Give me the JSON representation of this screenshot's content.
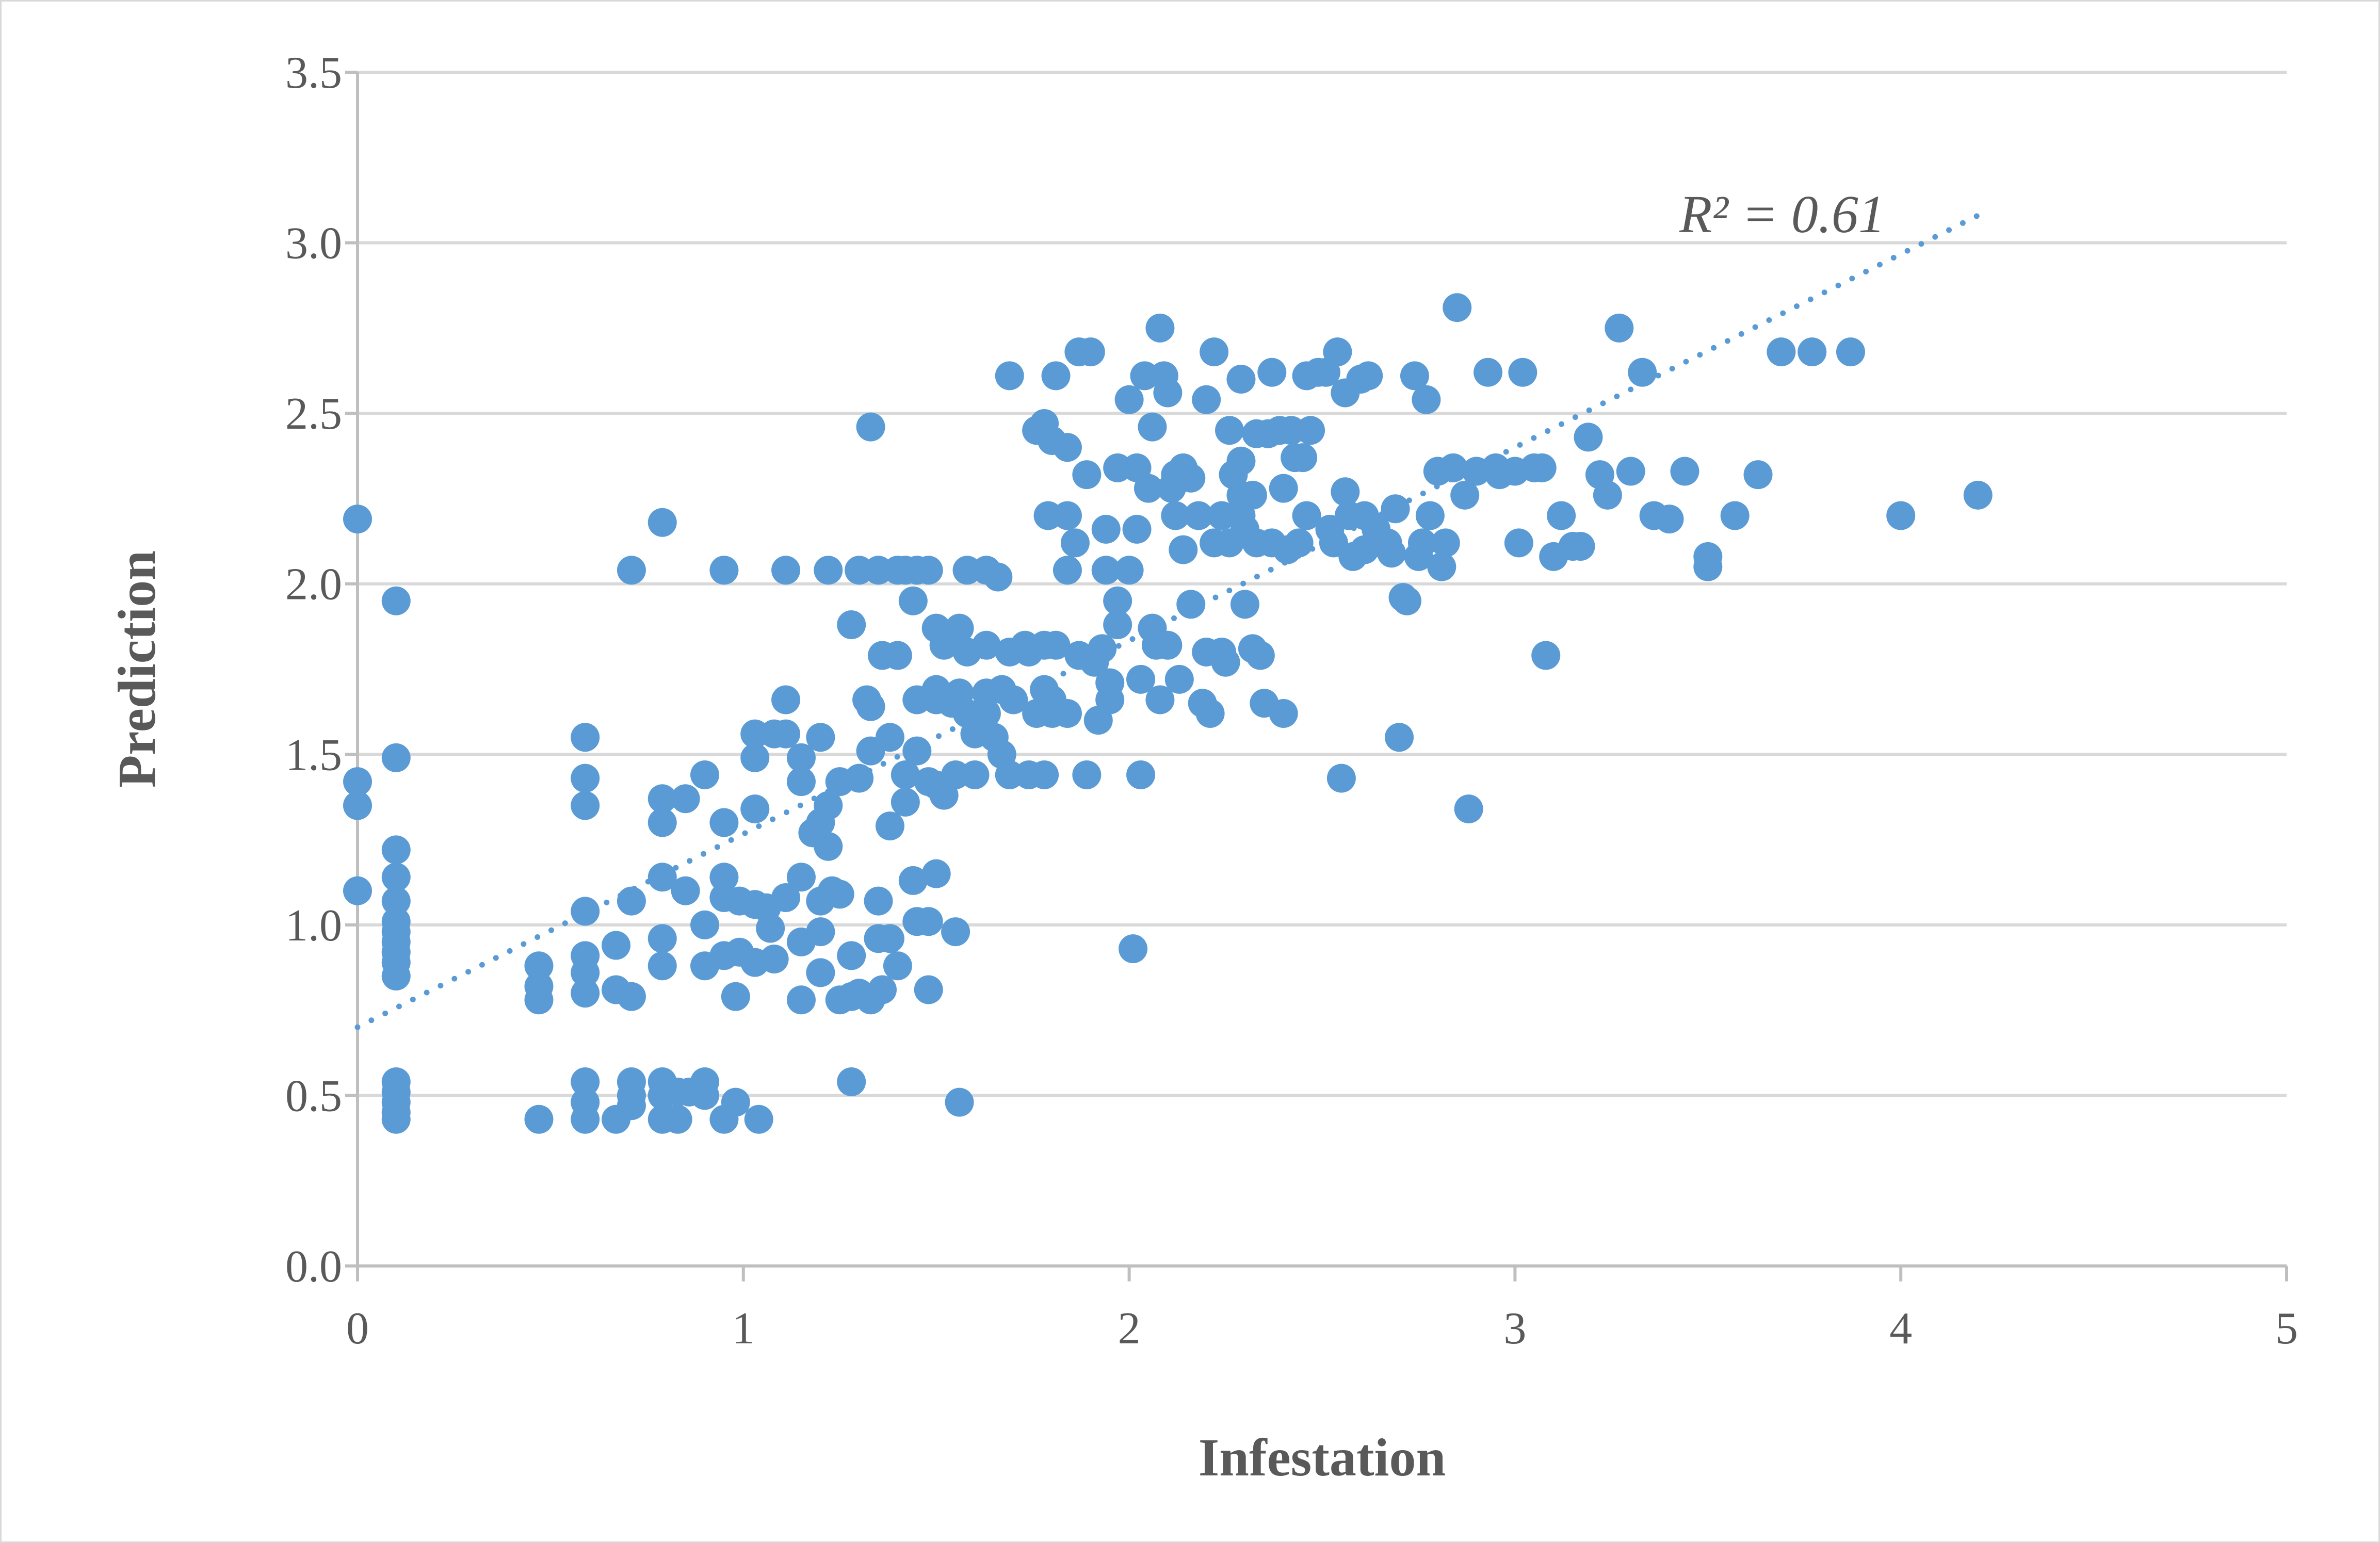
{
  "chart_data": {
    "type": "scatter",
    "xlabel": "Infestation",
    "ylabel": "Prediction",
    "xlim": [
      0,
      5
    ],
    "ylim": [
      0,
      3.5
    ],
    "xticks": [
      "0",
      "1",
      "2",
      "3",
      "4",
      "5"
    ],
    "yticks": [
      "0.0",
      "0.5",
      "1.0",
      "1.5",
      "2.0",
      "2.5",
      "3.0",
      "3.5"
    ],
    "grid": "horizontal",
    "legend": "none",
    "marker_color": "#5b9bd5",
    "trendline": {
      "style": "dotted",
      "color": "#5b9bd5",
      "label": "R² = 0.61",
      "start": [
        0,
        0.7
      ],
      "end": [
        4.2,
        3.08
      ]
    },
    "points": [
      [
        0,
        2.19
      ],
      [
        0,
        1.42
      ],
      [
        0,
        1.35
      ],
      [
        0,
        1.1
      ],
      [
        0.1,
        1.95
      ],
      [
        0.1,
        1.49
      ],
      [
        0.1,
        1.22
      ],
      [
        0.1,
        1.14
      ],
      [
        0.1,
        1.07
      ],
      [
        0.1,
        1.01
      ],
      [
        0.1,
        0.98
      ],
      [
        0.1,
        0.95
      ],
      [
        0.1,
        0.92
      ],
      [
        0.1,
        0.89
      ],
      [
        0.1,
        0.85
      ],
      [
        0.1,
        0.54
      ],
      [
        0.1,
        0.51
      ],
      [
        0.1,
        0.48
      ],
      [
        0.1,
        0.45
      ],
      [
        0.1,
        0.43
      ],
      [
        0.47,
        0.88
      ],
      [
        0.47,
        0.82
      ],
      [
        0.47,
        0.78
      ],
      [
        0.47,
        0.43
      ],
      [
        0.59,
        1.55
      ],
      [
        0.59,
        1.43
      ],
      [
        0.59,
        1.35
      ],
      [
        0.59,
        1.04
      ],
      [
        0.59,
        0.91
      ],
      [
        0.59,
        0.86
      ],
      [
        0.59,
        0.8
      ],
      [
        0.59,
        0.54
      ],
      [
        0.59,
        0.48
      ],
      [
        0.59,
        0.43
      ],
      [
        0.67,
        0.94
      ],
      [
        0.67,
        0.81
      ],
      [
        0.67,
        0.43
      ],
      [
        0.71,
        2.04
      ],
      [
        0.71,
        1.07
      ],
      [
        0.71,
        0.79
      ],
      [
        0.71,
        0.54
      ],
      [
        0.71,
        0.5
      ],
      [
        0.71,
        0.47
      ],
      [
        0.79,
        2.18
      ],
      [
        0.79,
        1.37
      ],
      [
        0.79,
        1.3
      ],
      [
        0.79,
        1.14
      ],
      [
        0.79,
        0.96
      ],
      [
        0.79,
        0.88
      ],
      [
        0.79,
        0.54
      ],
      [
        0.79,
        0.5
      ],
      [
        0.79,
        0.43
      ],
      [
        0.83,
        0.51
      ],
      [
        0.83,
        0.43
      ],
      [
        0.85,
        1.37
      ],
      [
        0.85,
        1.1
      ],
      [
        0.86,
        0.51
      ],
      [
        0.9,
        1.44
      ],
      [
        0.9,
        1.0
      ],
      [
        0.9,
        0.88
      ],
      [
        0.9,
        0.54
      ],
      [
        0.9,
        0.5
      ],
      [
        0.95,
        2.04
      ],
      [
        0.95,
        1.3
      ],
      [
        0.95,
        1.14
      ],
      [
        0.95,
        1.08
      ],
      [
        0.95,
        0.91
      ],
      [
        0.95,
        0.43
      ],
      [
        0.98,
        0.79
      ],
      [
        0.98,
        0.48
      ],
      [
        0.99,
        1.07
      ],
      [
        0.99,
        0.92
      ],
      [
        1.03,
        1.56
      ],
      [
        1.03,
        1.49
      ],
      [
        1.03,
        1.34
      ],
      [
        1.03,
        1.06
      ],
      [
        1.03,
        0.89
      ],
      [
        1.04,
        0.43
      ],
      [
        1.06,
        1.05
      ],
      [
        1.07,
        0.99
      ],
      [
        1.08,
        1.56
      ],
      [
        1.08,
        0.9
      ],
      [
        1.11,
        2.04
      ],
      [
        1.11,
        1.66
      ],
      [
        1.11,
        1.56
      ],
      [
        1.11,
        1.08
      ],
      [
        1.15,
        1.49
      ],
      [
        1.15,
        1.42
      ],
      [
        1.15,
        1.14
      ],
      [
        1.15,
        0.95
      ],
      [
        1.15,
        0.78
      ],
      [
        1.18,
        1.27
      ],
      [
        1.2,
        1.55
      ],
      [
        1.2,
        1.3
      ],
      [
        1.2,
        1.07
      ],
      [
        1.2,
        0.98
      ],
      [
        1.2,
        0.86
      ],
      [
        1.22,
        2.04
      ],
      [
        1.22,
        1.35
      ],
      [
        1.22,
        1.23
      ],
      [
        1.23,
        1.1
      ],
      [
        1.25,
        1.42
      ],
      [
        1.25,
        1.09
      ],
      [
        1.25,
        0.78
      ],
      [
        1.28,
        1.88
      ],
      [
        1.28,
        0.91
      ],
      [
        1.28,
        0.79
      ],
      [
        1.28,
        0.54
      ],
      [
        1.3,
        2.04
      ],
      [
        1.3,
        1.43
      ],
      [
        1.3,
        0.8
      ],
      [
        1.32,
        1.66
      ],
      [
        1.33,
        2.46
      ],
      [
        1.33,
        1.64
      ],
      [
        1.33,
        1.51
      ],
      [
        1.33,
        0.78
      ],
      [
        1.35,
        2.04
      ],
      [
        1.35,
        1.07
      ],
      [
        1.35,
        0.96
      ],
      [
        1.36,
        1.79
      ],
      [
        1.36,
        0.81
      ],
      [
        1.38,
        1.55
      ],
      [
        1.38,
        1.29
      ],
      [
        1.38,
        0.96
      ],
      [
        1.4,
        2.04
      ],
      [
        1.4,
        1.79
      ],
      [
        1.4,
        0.88
      ],
      [
        1.42,
        2.04
      ],
      [
        1.42,
        1.44
      ],
      [
        1.42,
        1.36
      ],
      [
        1.44,
        1.95
      ],
      [
        1.44,
        1.13
      ],
      [
        1.45,
        2.04
      ],
      [
        1.45,
        1.66
      ],
      [
        1.45,
        1.51
      ],
      [
        1.45,
        1.01
      ],
      [
        1.48,
        2.04
      ],
      [
        1.48,
        1.42
      ],
      [
        1.48,
        1.01
      ],
      [
        1.48,
        0.81
      ],
      [
        1.5,
        1.87
      ],
      [
        1.5,
        1.69
      ],
      [
        1.5,
        1.66
      ],
      [
        1.5,
        1.41
      ],
      [
        1.5,
        1.15
      ],
      [
        1.52,
        1.82
      ],
      [
        1.52,
        1.38
      ],
      [
        1.54,
        1.65
      ],
      [
        1.55,
        1.44
      ],
      [
        1.55,
        0.98
      ],
      [
        1.56,
        1.87
      ],
      [
        1.56,
        1.68
      ],
      [
        1.56,
        0.48
      ],
      [
        1.58,
        2.04
      ],
      [
        1.58,
        1.8
      ],
      [
        1.58,
        1.62
      ],
      [
        1.6,
        1.56
      ],
      [
        1.6,
        1.44
      ],
      [
        1.63,
        2.04
      ],
      [
        1.63,
        1.82
      ],
      [
        1.63,
        1.68
      ],
      [
        1.63,
        1.62
      ],
      [
        1.65,
        1.55
      ],
      [
        1.66,
        2.02
      ],
      [
        1.67,
        1.69
      ],
      [
        1.67,
        1.5
      ],
      [
        1.69,
        2.61
      ],
      [
        1.69,
        1.8
      ],
      [
        1.69,
        1.44
      ],
      [
        1.7,
        1.66
      ],
      [
        1.73,
        1.82
      ],
      [
        1.74,
        1.8
      ],
      [
        1.74,
        1.44
      ],
      [
        1.76,
        2.45
      ],
      [
        1.76,
        1.62
      ],
      [
        1.78,
        2.47
      ],
      [
        1.78,
        1.82
      ],
      [
        1.78,
        1.69
      ],
      [
        1.78,
        1.44
      ],
      [
        1.79,
        2.2
      ],
      [
        1.8,
        2.42
      ],
      [
        1.8,
        1.66
      ],
      [
        1.8,
        1.62
      ],
      [
        1.81,
        2.61
      ],
      [
        1.81,
        1.82
      ],
      [
        1.84,
        2.4
      ],
      [
        1.84,
        2.2
      ],
      [
        1.84,
        2.04
      ],
      [
        1.84,
        1.62
      ],
      [
        1.86,
        2.12
      ],
      [
        1.87,
        2.68
      ],
      [
        1.87,
        1.79
      ],
      [
        1.89,
        2.32
      ],
      [
        1.89,
        1.44
      ],
      [
        1.9,
        2.68
      ],
      [
        1.91,
        1.77
      ],
      [
        1.92,
        1.6
      ],
      [
        1.93,
        1.81
      ],
      [
        1.94,
        2.16
      ],
      [
        1.94,
        2.04
      ],
      [
        1.95,
        1.71
      ],
      [
        1.95,
        1.66
      ],
      [
        1.97,
        2.34
      ],
      [
        1.97,
        1.95
      ],
      [
        1.97,
        1.88
      ],
      [
        2.0,
        2.54
      ],
      [
        2.0,
        2.04
      ],
      [
        2.01,
        0.93
      ],
      [
        2.02,
        2.34
      ],
      [
        2.02,
        2.16
      ],
      [
        2.03,
        1.72
      ],
      [
        2.03,
        1.44
      ],
      [
        2.04,
        2.61
      ],
      [
        2.05,
        2.28
      ],
      [
        2.06,
        2.46
      ],
      [
        2.06,
        1.87
      ],
      [
        2.07,
        1.82
      ],
      [
        2.08,
        2.75
      ],
      [
        2.08,
        1.66
      ],
      [
        2.09,
        2.61
      ],
      [
        2.1,
        2.56
      ],
      [
        2.1,
        1.82
      ],
      [
        2.11,
        2.28
      ],
      [
        2.12,
        2.32
      ],
      [
        2.12,
        2.2
      ],
      [
        2.13,
        1.72
      ],
      [
        2.14,
        2.1
      ],
      [
        2.14,
        2.34
      ],
      [
        2.16,
        2.31
      ],
      [
        2.16,
        1.94
      ],
      [
        2.18,
        2.2
      ],
      [
        2.19,
        1.65
      ],
      [
        2.2,
        2.54
      ],
      [
        2.2,
        1.8
      ],
      [
        2.21,
        1.62
      ],
      [
        2.22,
        2.68
      ],
      [
        2.22,
        2.12
      ],
      [
        2.24,
        2.2
      ],
      [
        2.24,
        1.8
      ],
      [
        2.25,
        1.77
      ],
      [
        2.26,
        2.45
      ],
      [
        2.26,
        2.12
      ],
      [
        2.27,
        2.32
      ],
      [
        2.29,
        2.6
      ],
      [
        2.29,
        2.36
      ],
      [
        2.29,
        2.26
      ],
      [
        2.29,
        2.2
      ],
      [
        2.3,
        2.16
      ],
      [
        2.3,
        1.94
      ],
      [
        2.32,
        2.26
      ],
      [
        2.32,
        1.81
      ],
      [
        2.33,
        2.44
      ],
      [
        2.33,
        2.12
      ],
      [
        2.34,
        1.79
      ],
      [
        2.35,
        1.65
      ],
      [
        2.36,
        2.44
      ],
      [
        2.37,
        2.62
      ],
      [
        2.37,
        2.12
      ],
      [
        2.39,
        2.45
      ],
      [
        2.4,
        2.28
      ],
      [
        2.4,
        1.62
      ],
      [
        2.41,
        2.1
      ],
      [
        2.42,
        2.45
      ],
      [
        2.43,
        2.37
      ],
      [
        2.44,
        2.12
      ],
      [
        2.45,
        2.37
      ],
      [
        2.46,
        2.61
      ],
      [
        2.46,
        2.2
      ],
      [
        2.47,
        2.45
      ],
      [
        2.49,
        2.62
      ],
      [
        2.51,
        2.62
      ],
      [
        2.52,
        2.16
      ],
      [
        2.53,
        2.12
      ],
      [
        2.54,
        2.68
      ],
      [
        2.55,
        1.43
      ],
      [
        2.56,
        2.56
      ],
      [
        2.56,
        2.27
      ],
      [
        2.57,
        2.2
      ],
      [
        2.58,
        2.08
      ],
      [
        2.6,
        2.6
      ],
      [
        2.61,
        2.2
      ],
      [
        2.61,
        2.1
      ],
      [
        2.62,
        2.61
      ],
      [
        2.64,
        2.16
      ],
      [
        2.65,
        2.12
      ],
      [
        2.67,
        2.12
      ],
      [
        2.68,
        2.09
      ],
      [
        2.69,
        2.22
      ],
      [
        2.7,
        1.55
      ],
      [
        2.71,
        1.96
      ],
      [
        2.72,
        1.95
      ],
      [
        2.74,
        2.61
      ],
      [
        2.75,
        2.08
      ],
      [
        2.76,
        2.12
      ],
      [
        2.77,
        2.54
      ],
      [
        2.78,
        2.2
      ],
      [
        2.8,
        2.33
      ],
      [
        2.81,
        2.05
      ],
      [
        2.82,
        2.12
      ],
      [
        2.84,
        2.34
      ],
      [
        2.85,
        2.81
      ],
      [
        2.87,
        2.26
      ],
      [
        2.88,
        1.34
      ],
      [
        2.9,
        2.33
      ],
      [
        2.93,
        2.62
      ],
      [
        2.95,
        2.34
      ],
      [
        2.96,
        2.32
      ],
      [
        3.0,
        2.33
      ],
      [
        3.01,
        2.12
      ],
      [
        3.02,
        2.62
      ],
      [
        3.05,
        2.34
      ],
      [
        3.07,
        2.34
      ],
      [
        3.08,
        1.79
      ],
      [
        3.1,
        2.08
      ],
      [
        3.12,
        2.2
      ],
      [
        3.15,
        2.11
      ],
      [
        3.17,
        2.11
      ],
      [
        3.19,
        2.43
      ],
      [
        3.22,
        2.32
      ],
      [
        3.24,
        2.26
      ],
      [
        3.27,
        2.75
      ],
      [
        3.3,
        2.33
      ],
      [
        3.33,
        2.62
      ],
      [
        3.36,
        2.2
      ],
      [
        3.4,
        2.19
      ],
      [
        3.44,
        2.33
      ],
      [
        3.5,
        2.08
      ],
      [
        3.5,
        2.05
      ],
      [
        3.57,
        2.2
      ],
      [
        3.63,
        2.32
      ],
      [
        3.69,
        2.68
      ],
      [
        3.77,
        2.68
      ],
      [
        3.87,
        2.68
      ],
      [
        4.0,
        2.2
      ],
      [
        4.2,
        2.26
      ]
    ]
  }
}
